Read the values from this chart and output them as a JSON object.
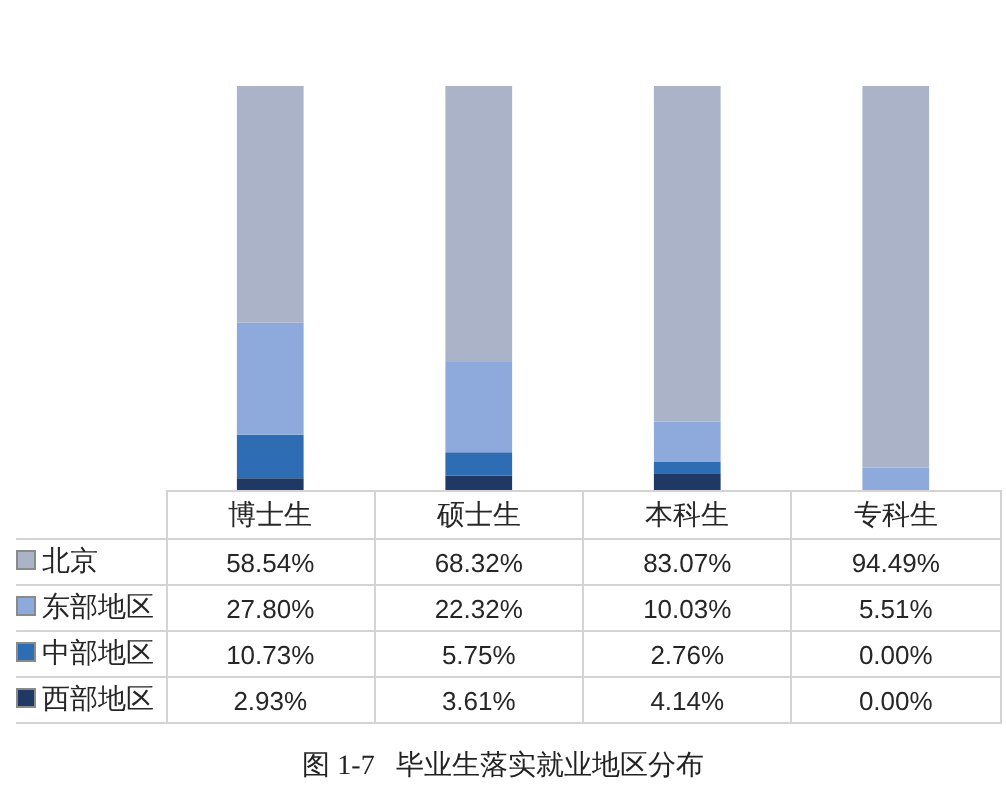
{
  "chart_data": {
    "type": "bar",
    "title": "图 1-7   毕业生落实就业地区分布",
    "categories": [
      "博士生",
      "硕士生",
      "本科生",
      "专科生"
    ],
    "stacked": true,
    "grid": false,
    "legend": "bottom left",
    "series": [
      {
        "name": "西部地区",
        "color": "#203864",
        "values": [
          2.93,
          3.61,
          4.14,
          0.0
        ],
        "value_labels": [
          "2.93%",
          "3.61%",
          "4.14%",
          "0.00%"
        ]
      },
      {
        "name": "中部地区",
        "color": "#2e6db4",
        "values": [
          10.73,
          5.75,
          2.76,
          0.0
        ],
        "value_labels": [
          "10.73%",
          "5.75%",
          "2.76%",
          "0.00%"
        ]
      },
      {
        "name": "东部地区",
        "color": "#8eaadc",
        "values": [
          27.8,
          22.32,
          10.03,
          5.51
        ],
        "value_labels": [
          "27.80%",
          "22.32%",
          "10.03%",
          "5.51%"
        ]
      },
      {
        "name": "北京",
        "color": "#aab3c8",
        "values": [
          58.54,
          68.32,
          83.07,
          94.49
        ],
        "value_labels": [
          "58.54%",
          "68.32%",
          "83.07%",
          "94.49%"
        ]
      }
    ]
  }
}
